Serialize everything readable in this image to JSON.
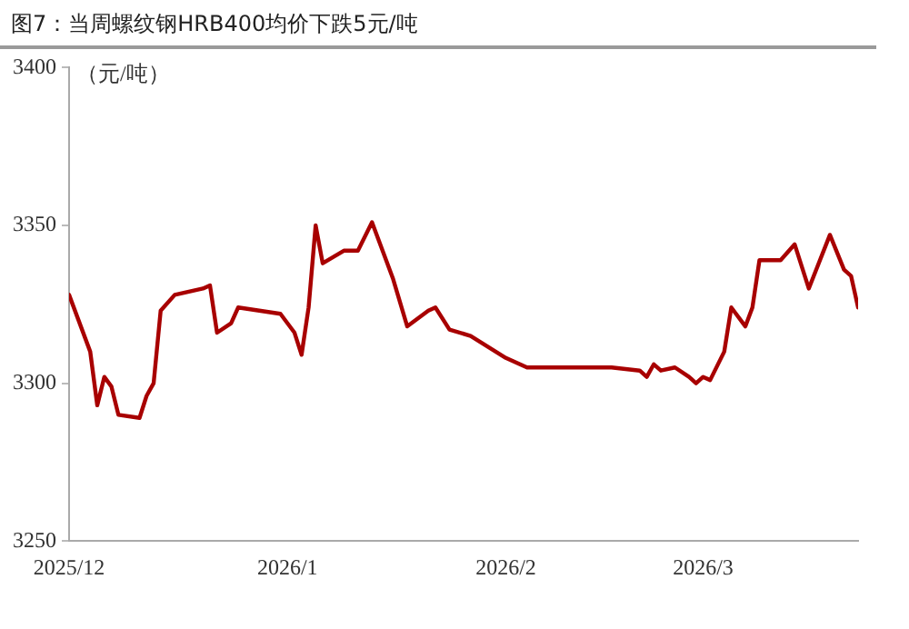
{
  "chart_data": {
    "type": "line",
    "title": "图7：当周螺纹钢HRB400均价下跌5元/吨",
    "ylabel": "（元/吨）",
    "x": [
      "2025-12-01",
      "2025-12-04",
      "2025-12-05",
      "2025-12-06",
      "2025-12-07",
      "2025-12-08",
      "2025-12-11",
      "2025-12-12",
      "2025-12-13",
      "2025-12-14",
      "2025-12-16",
      "2025-12-20",
      "2025-12-21",
      "2025-12-22",
      "2025-12-24",
      "2025-12-25",
      "2025-12-31",
      "2026-01-02",
      "2026-01-03",
      "2026-01-04",
      "2026-01-05",
      "2026-01-06",
      "2026-01-09",
      "2026-01-11",
      "2026-01-13",
      "2026-01-16",
      "2026-01-18",
      "2026-01-21",
      "2026-01-22",
      "2026-01-24",
      "2026-01-27",
      "2026-02-01",
      "2026-02-04",
      "2026-02-16",
      "2026-02-20",
      "2026-02-21",
      "2026-02-22",
      "2026-02-23",
      "2026-02-25",
      "2026-02-27",
      "2026-02-28",
      "2026-03-01",
      "2026-03-02",
      "2026-03-04",
      "2026-03-05",
      "2026-03-07",
      "2026-03-08",
      "2026-03-09",
      "2026-03-12",
      "2026-03-14",
      "2026-03-16",
      "2026-03-19",
      "2026-03-21",
      "2026-03-22",
      "2026-03-23"
    ],
    "series": [
      {
        "color": "#a80000",
        "values": [
          3328,
          3310,
          3293,
          3302,
          3299,
          3290,
          3289,
          3296,
          3300,
          3323,
          3328,
          3330,
          3331,
          3316,
          3319,
          3324,
          3322,
          3316,
          3309,
          3324,
          3350,
          3338,
          3342,
          3342,
          3351,
          3333,
          3318,
          3323,
          3324,
          3317,
          3315,
          3308,
          3305,
          3305,
          3304,
          3302,
          3306,
          3304,
          3305,
          3302,
          3300,
          3302,
          3301,
          3310,
          3324,
          3318,
          3324,
          3339,
          3339,
          3344,
          3330,
          3347,
          3336,
          3334,
          3324
        ]
      }
    ],
    "xlim": [
      "2025-12-01",
      "2026-03-23"
    ],
    "xticks": [
      {
        "value": "2025-12-01",
        "label": "2025/12"
      },
      {
        "value": "2026-01-01",
        "label": "2026/1"
      },
      {
        "value": "2026-02-01",
        "label": "2026/2"
      },
      {
        "value": "2026-03-01",
        "label": "2026/3"
      }
    ],
    "ylim": [
      3250,
      3400
    ],
    "yticks": [
      3250,
      3300,
      3350,
      3400
    ],
    "grid": false,
    "legend": false,
    "marker": "none",
    "line_style": "solid"
  }
}
